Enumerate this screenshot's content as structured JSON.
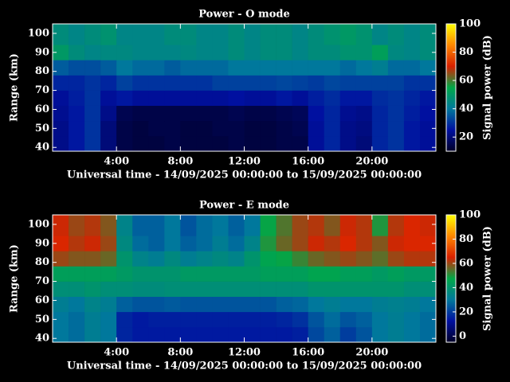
{
  "chart_data": [
    {
      "type": "heatmap",
      "title": "Power - O mode",
      "x_label": "Universal time - 14/09/2025 00:00:00 to 15/09/2025 00:00:00",
      "y_label": "Range (km)",
      "colorbar_label": "Signal power (dB)",
      "x_bins": [
        0,
        1,
        2,
        3,
        4,
        5,
        6,
        7,
        8,
        9,
        10,
        11,
        12,
        13,
        14,
        15,
        16,
        17,
        18,
        19,
        20,
        21,
        22,
        23,
        24
      ],
      "y_bins": [
        38,
        46,
        54,
        62,
        70,
        78,
        86,
        94,
        105
      ],
      "values": [
        [
          22,
          26,
          30,
          20,
          14,
          13,
          13,
          14,
          13,
          13,
          13,
          14,
          13,
          13,
          14,
          14,
          24,
          28,
          22,
          20,
          28,
          30,
          26,
          24
        ],
        [
          22,
          26,
          30,
          20,
          14,
          13,
          14,
          14,
          13,
          13,
          14,
          14,
          13,
          13,
          14,
          15,
          24,
          28,
          22,
          21,
          28,
          30,
          26,
          24
        ],
        [
          23,
          26,
          30,
          22,
          15,
          14,
          14,
          14,
          14,
          14,
          14,
          15,
          14,
          14,
          15,
          16,
          25,
          28,
          23,
          22,
          28,
          30,
          27,
          25
        ],
        [
          24,
          27,
          30,
          24,
          26,
          24,
          24,
          24,
          24,
          24,
          24,
          25,
          24,
          24,
          26,
          24,
          27,
          29,
          26,
          26,
          29,
          30,
          28,
          26
        ],
        [
          28,
          28,
          30,
          28,
          32,
          30,
          30,
          30,
          30,
          30,
          32,
          32,
          32,
          32,
          33,
          32,
          31,
          33,
          32,
          32,
          32,
          32,
          30,
          30
        ],
        [
          36,
          34,
          34,
          36,
          40,
          38,
          38,
          36,
          38,
          38,
          38,
          40,
          40,
          40,
          40,
          40,
          40,
          40,
          38,
          40,
          42,
          38,
          38,
          40
        ],
        [
          50,
          46,
          44,
          45,
          45,
          44,
          44,
          44,
          45,
          44,
          44,
          46,
          44,
          46,
          46,
          44,
          46,
          46,
          48,
          48,
          52,
          45,
          44,
          46
        ],
        [
          46,
          44,
          46,
          48,
          44,
          44,
          44,
          46,
          46,
          44,
          44,
          46,
          44,
          46,
          46,
          44,
          46,
          48,
          50,
          48,
          44,
          46,
          44,
          46
        ]
      ],
      "xlim": [
        0,
        24
      ],
      "ylim": [
        38,
        105
      ],
      "xticks": [
        {
          "value": 4,
          "label": "4:00"
        },
        {
          "value": 8,
          "label": "8:00"
        },
        {
          "value": 12,
          "label": "12:00"
        },
        {
          "value": 16,
          "label": "16:00"
        },
        {
          "value": 20,
          "label": "20:00"
        }
      ],
      "yticks": [
        40,
        50,
        60,
        70,
        80,
        90,
        100
      ],
      "clim": [
        10,
        100
      ],
      "cticks": [
        20,
        40,
        60,
        80,
        100
      ],
      "colorscale": [
        "#000028",
        "#0010a0",
        "#00789c",
        "#00a848",
        "#d82000",
        "#ff8800",
        "#ffff00"
      ]
    },
    {
      "type": "heatmap",
      "title": "Power - E mode",
      "x_label": "Universal time - 14/09/2025 00:00:00 to 15/09/2025 00:00:00",
      "y_label": "Range (km)",
      "colorbar_label": "Signal power (dB)",
      "x_bins": [
        0,
        1,
        2,
        3,
        4,
        5,
        6,
        7,
        8,
        9,
        10,
        11,
        12,
        13,
        14,
        15,
        16,
        17,
        18,
        19,
        20,
        21,
        22,
        23,
        24
      ],
      "y_bins": [
        38,
        46,
        54,
        62,
        70,
        78,
        86,
        94,
        105
      ],
      "values": [
        [
          30,
          28,
          32,
          30,
          16,
          14,
          14,
          14,
          14,
          14,
          14,
          14,
          14,
          14,
          14,
          15,
          22,
          26,
          20,
          24,
          30,
          32,
          30,
          28
        ],
        [
          30,
          28,
          32,
          30,
          16,
          14,
          15,
          15,
          15,
          15,
          15,
          15,
          15,
          15,
          16,
          18,
          24,
          28,
          24,
          26,
          30,
          32,
          30,
          28
        ],
        [
          32,
          30,
          34,
          32,
          26,
          24,
          24,
          25,
          24,
          24,
          24,
          24,
          24,
          24,
          26,
          27,
          30,
          32,
          30,
          30,
          32,
          33,
          32,
          30
        ],
        [
          38,
          38,
          40,
          38,
          38,
          37,
          37,
          38,
          38,
          38,
          38,
          38,
          38,
          38,
          38,
          38,
          40,
          40,
          40,
          40,
          40,
          40,
          38,
          38
        ],
        [
          44,
          44,
          44,
          44,
          42,
          40,
          40,
          40,
          42,
          42,
          42,
          42,
          42,
          44,
          44,
          44,
          46,
          46,
          44,
          44,
          42,
          44,
          42,
          42
        ],
        [
          60,
          58,
          58,
          56,
          40,
          34,
          32,
          36,
          32,
          34,
          36,
          34,
          40,
          46,
          48,
          52,
          56,
          58,
          60,
          58,
          55,
          60,
          62,
          62
        ],
        [
          66,
          62,
          64,
          60,
          36,
          28,
          26,
          30,
          26,
          28,
          32,
          28,
          34,
          50,
          56,
          60,
          64,
          62,
          66,
          62,
          58,
          64,
          66,
          66
        ],
        [
          64,
          60,
          62,
          58,
          34,
          26,
          26,
          30,
          24,
          28,
          30,
          26,
          30,
          48,
          54,
          60,
          62,
          58,
          64,
          62,
          50,
          62,
          66,
          64
        ]
      ],
      "xlim": [
        0,
        24
      ],
      "ylim": [
        38,
        105
      ],
      "xticks": [
        {
          "value": 4,
          "label": "4:00"
        },
        {
          "value": 8,
          "label": "8:00"
        },
        {
          "value": 12,
          "label": "12:00"
        },
        {
          "value": 16,
          "label": "16:00"
        },
        {
          "value": 20,
          "label": "20:00"
        }
      ],
      "yticks": [
        40,
        50,
        60,
        70,
        80,
        90,
        100
      ],
      "clim": [
        -5,
        100
      ],
      "cticks": [
        0,
        20,
        40,
        60,
        80,
        100
      ],
      "colorscale": [
        "#000028",
        "#0010a0",
        "#00789c",
        "#00a848",
        "#d82000",
        "#ff8800",
        "#ffff00"
      ]
    }
  ]
}
